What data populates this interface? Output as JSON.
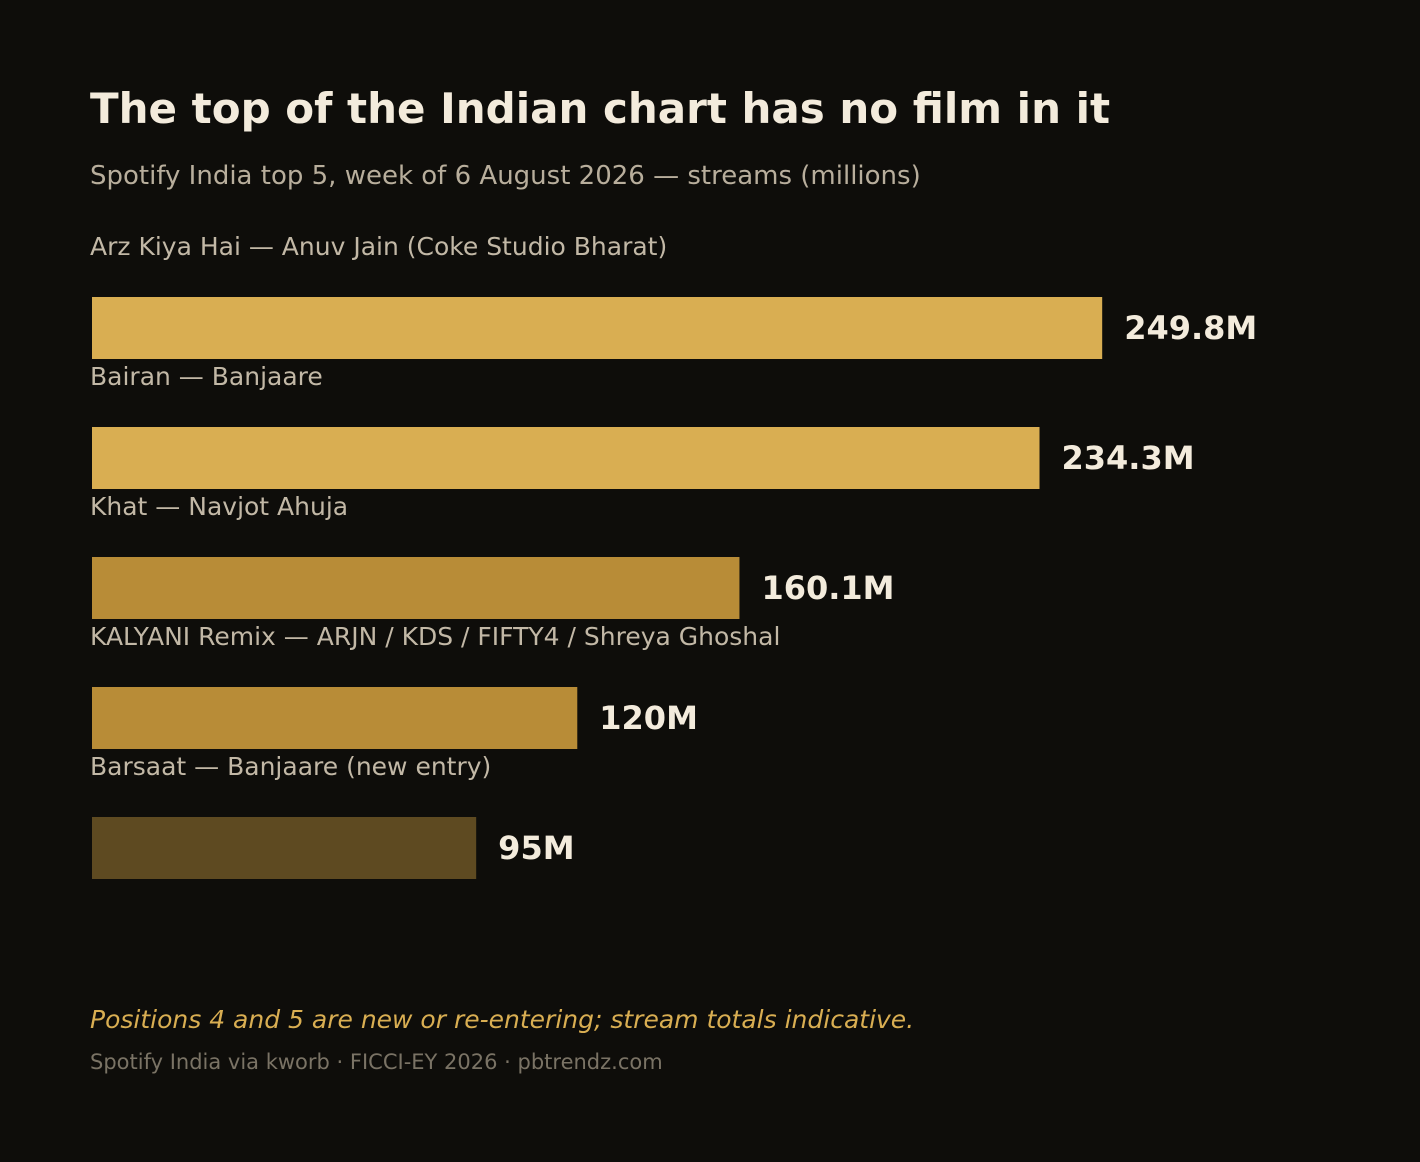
{
  "chart_data": {
    "type": "bar",
    "orientation": "horizontal",
    "title": "The top of the Indian chart has no film in it",
    "subtitle": "Spotify India top 5, week of 6 August 2026 — streams (millions)",
    "categories": [
      "Arz Kiya Hai — Anuv Jain (Coke Studio Bharat)",
      "Bairan — Banjaare",
      "Khat — Navjot Ahuja",
      "KALYANI Remix — ARJN / KDS / FIFTY4 / Shreya Ghoshal",
      "Barsaat — Banjaare (new entry)"
    ],
    "values": [
      249.8,
      234.3,
      160.1,
      120,
      95
    ],
    "value_labels": [
      "249.8M",
      "234.3M",
      "160.1M",
      "120M",
      "95M"
    ],
    "bar_colors": [
      "#d9ae52",
      "#d9ae52",
      "#b88c37",
      "#b88c37",
      "#5e4a21"
    ],
    "xlim": [
      0,
      250
    ],
    "grid": false,
    "note": "Positions 4 and 5 are new or re-entering; stream totals indicative.",
    "source": "Spotify India via kworb · FICCI-EY 2026 · pbtrendz.com"
  }
}
